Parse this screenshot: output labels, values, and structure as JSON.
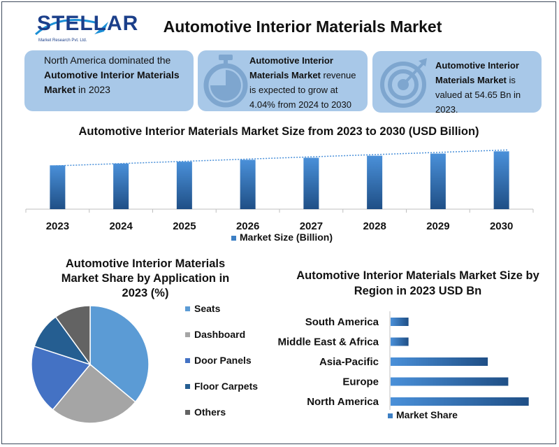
{
  "header": {
    "logo_text": "STELLAR",
    "logo_sub": "Market Research Pvt. Ltd.",
    "title": "Automotive Interior Materials Market"
  },
  "cards": {
    "c1_pre": "North America dominated the ",
    "c1_bold": "Automotive Interior Materials Market",
    "c1_post": " in 2023",
    "c2_bold": "Automotive Interior Materials Market",
    "c2_post": " revenue is expected to grow at 4.04% from 2024 to 2030",
    "c3_bold": "Automotive Interior Materials Market",
    "c3_post": " is valued at 54.65 Bn in 2023.",
    "c2_icon": "stopwatch-icon",
    "c3_icon": "target-icon"
  },
  "colors": {
    "card_bg": "#a8c8e8",
    "bar_fill": "#3d7fc4",
    "seats": "#5b9bd5",
    "dashboard": "#a5a5a5",
    "door_panels": "#4472c4",
    "floor_carpets": "#255e91",
    "others": "#636363"
  },
  "chart_data": [
    {
      "type": "bar",
      "title": "Automotive Interior Materials Market Size from 2023 to 2030 (USD Billion)",
      "categories": [
        "2023",
        "2024",
        "2025",
        "2026",
        "2027",
        "2028",
        "2029",
        "2030"
      ],
      "series": [
        {
          "name": "Market Size (Billion)",
          "values": [
            54.65,
            56.86,
            59.16,
            61.55,
            64.04,
            66.63,
            69.32,
            72.12
          ]
        }
      ],
      "trendline": true,
      "legend": "bottom",
      "ylim": [
        0,
        75
      ]
    },
    {
      "type": "pie",
      "title": "Automotive Interior Materials Market Share by Application in 2023 (%)",
      "labels": [
        "Seats",
        "Dashboard",
        "Door Panels",
        "Floor Carpets",
        "Others"
      ],
      "values": [
        36,
        25,
        19,
        10,
        10
      ],
      "legend": "right"
    },
    {
      "type": "bar",
      "orientation": "horizontal",
      "title": "Automotive Interior Materials Market Size by Region in 2023 USD Bn",
      "categories": [
        "South America",
        "Middle East & Africa",
        "Asia-Pacific",
        "Europe",
        "North America"
      ],
      "series": [
        {
          "name": "Market Share",
          "values": [
            3.5,
            3.5,
            19,
            23,
            27
          ]
        }
      ],
      "xlim": [
        0,
        28
      ],
      "legend": "bottom"
    }
  ]
}
